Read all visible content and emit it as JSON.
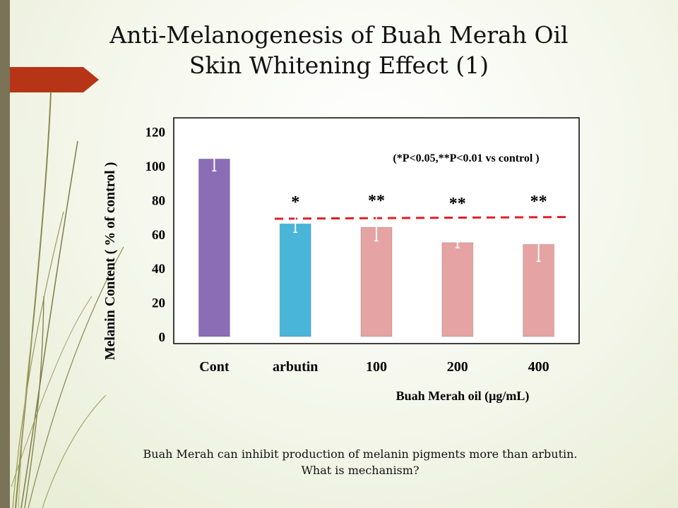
{
  "slide": {
    "title_line1": "Anti-Melanogenesis of Buah Merah Oil",
    "title_line2": "Skin Whitening Effect (1)",
    "caption_line1": "Buah Merah can inhibit production of melanin pigments more than arbutin.",
    "caption_line2": "What is mechanism?"
  },
  "colors": {
    "accent_banner": "#b83416",
    "side_bar": "#7a7358",
    "threshold_line": "#e01f26"
  },
  "chart_data": {
    "type": "bar",
    "categories": [
      "Cont",
      "arbutin",
      "100",
      "200",
      "400"
    ],
    "values": [
      104,
      66,
      64,
      55,
      54
    ],
    "error": [
      7,
      5,
      8,
      3,
      10
    ],
    "bar_colors": [
      "#8a6db4",
      "#49b5d8",
      "#e6a3a3",
      "#e6a3a3",
      "#e6a3a3"
    ],
    "significance": [
      "",
      "*",
      "**",
      "**",
      "**"
    ],
    "annotation": "(*P<0.05,**P<0.01 vs control )",
    "ylabel": "Melanin Content ( % of control )",
    "xlabel": "Buah Merah oil (μg/mL)",
    "ylim": [
      0,
      120
    ],
    "yticks": [
      0,
      20,
      40,
      60,
      80,
      100,
      120
    ],
    "reference_line": [
      69,
      70
    ],
    "grid": false
  }
}
